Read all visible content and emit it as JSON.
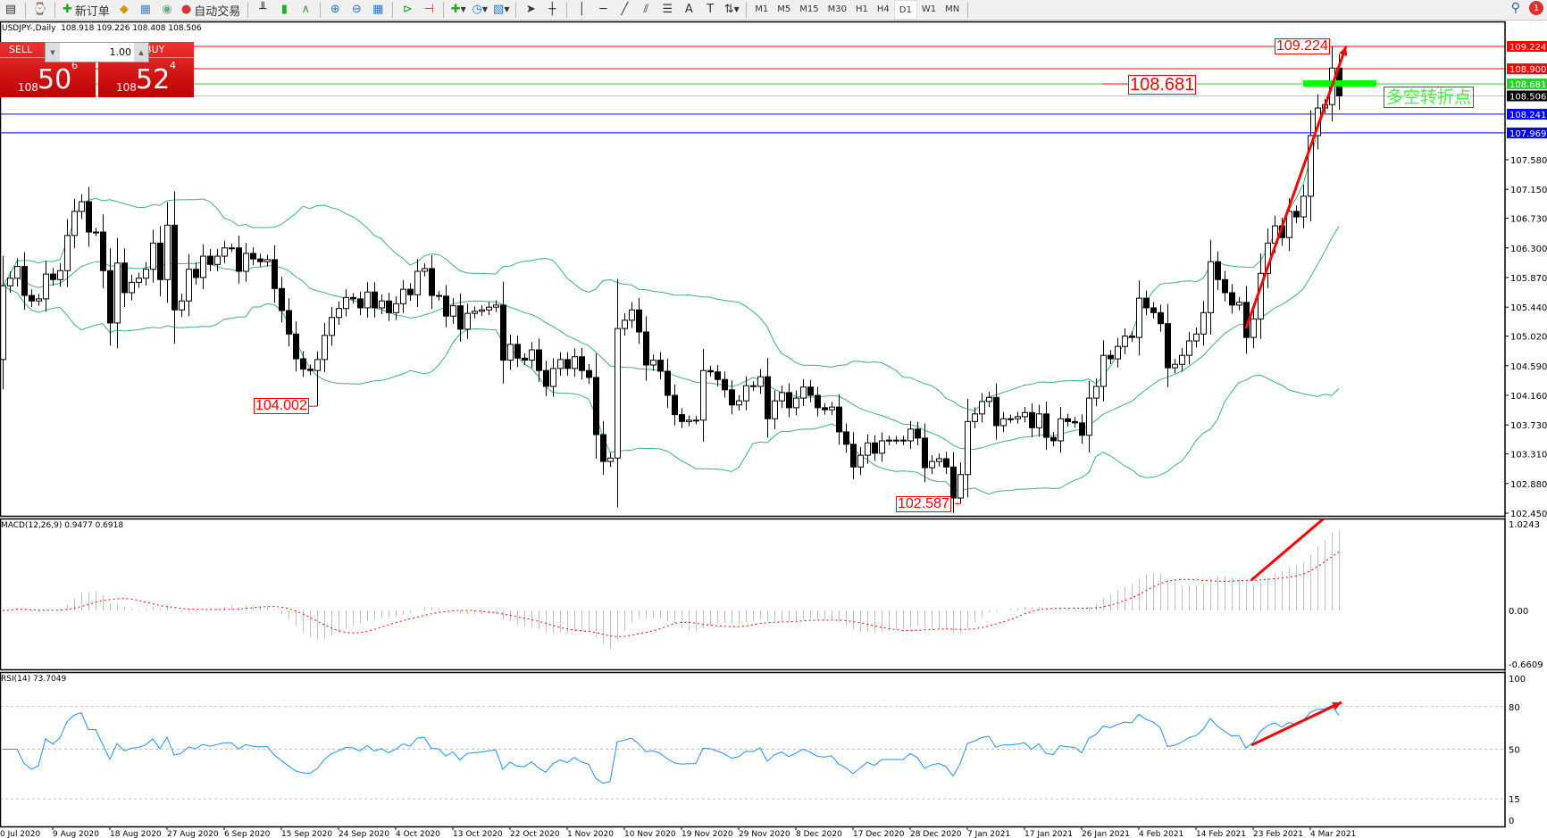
{
  "toolbar": {
    "new_order": "新订单",
    "auto_trading": "自动交易",
    "timeframes": [
      "M1",
      "M5",
      "M15",
      "M30",
      "H1",
      "H4",
      "D1",
      "W1",
      "MN"
    ],
    "active_timeframe": "D1",
    "notification_count": "1"
  },
  "chart": {
    "title": "USDJPY-,Daily  108.918 109.226 108.408 108.506"
  },
  "trade_panel": {
    "sell_label": "SELL",
    "buy_label": "BUY",
    "lot": "1.00",
    "sell_price": {
      "big": "108",
      "main": "50",
      "pip": "6"
    },
    "buy_price": {
      "big": "108",
      "main": "52",
      "pip": "4"
    }
  },
  "annotations": {
    "high_label": "109.224",
    "pivot_label": "108.681",
    "low1_label": "104.002",
    "low2_label": "102.587",
    "pivot_text": "多空转折点"
  },
  "indicators": {
    "macd_label": "MACD(12,26,9) 0.9477 0.6918",
    "rsi_label": "RSI(14) 73.7049"
  },
  "chart_data": {
    "type": "candlestick",
    "symbol": "USDJPY-",
    "timeframe": "Daily",
    "ylim": [
      102.45,
      109.3
    ],
    "first_open": 104.68,
    "close": [
      105.75,
      105.86,
      106.03,
      105.61,
      105.53,
      105.56,
      105.92,
      105.84,
      105.97,
      106.48,
      106.83,
      106.97,
      106.53,
      106.53,
      105.97,
      105.21,
      106.08,
      105.65,
      105.8,
      105.86,
      105.99,
      106.37,
      105.84,
      106.63,
      105.4,
      105.53,
      105.99,
      105.87,
      106.18,
      106.06,
      106.18,
      106.3,
      106.3,
      105.96,
      106.22,
      106.14,
      106.1,
      106.13,
      105.71,
      105.39,
      105.05,
      104.69,
      104.54,
      104.52,
      104.68,
      105.03,
      105.29,
      105.42,
      105.58,
      105.56,
      105.43,
      105.66,
      105.43,
      105.53,
      105.36,
      105.49,
      105.7,
      105.62,
      105.96,
      106.0,
      105.61,
      105.6,
      105.31,
      105.46,
      105.12,
      105.35,
      105.38,
      105.4,
      105.44,
      105.47,
      104.67,
      104.9,
      104.7,
      104.67,
      104.82,
      104.52,
      104.29,
      104.55,
      104.68,
      104.55,
      104.72,
      104.52,
      104.42,
      103.59,
      103.2,
      103.25,
      105.13,
      105.25,
      105.4,
      105.08,
      104.6,
      104.67,
      104.51,
      104.16,
      103.88,
      103.78,
      103.8,
      103.8,
      104.52,
      104.5,
      104.39,
      104.24,
      104.02,
      104.08,
      104.3,
      104.29,
      104.43,
      103.82,
      104.08,
      104.2,
      103.98,
      104.12,
      104.28,
      104.16,
      103.98,
      103.95,
      103.99,
      103.63,
      103.45,
      103.12,
      103.29,
      103.47,
      103.32,
      103.5,
      103.51,
      103.51,
      103.5,
      103.67,
      103.54,
      103.11,
      103.2,
      103.24,
      103.12,
      102.67,
      103.01,
      103.78,
      103.89,
      104.07,
      104.13,
      103.72,
      103.82,
      103.82,
      103.85,
      103.91,
      103.69,
      103.89,
      103.55,
      103.5,
      103.82,
      103.78,
      103.76,
      103.58,
      104.12,
      104.29,
      104.74,
      104.69,
      104.87,
      105.02,
      105.0,
      105.57,
      105.43,
      105.36,
      105.2,
      104.56,
      104.61,
      104.74,
      104.95,
      105.05,
      105.36,
      106.1,
      105.84,
      105.65,
      105.47,
      105.51,
      105.0,
      105.27,
      105.93,
      106.37,
      106.62,
      106.45,
      106.83,
      106.75,
      107.05,
      107.93,
      108.33,
      108.38,
      108.91,
      108.506
    ],
    "extremes": [
      {
        "bar": 44,
        "low": 104.002
      },
      {
        "bar": 134,
        "low": 102.587
      },
      {
        "bar": 186,
        "high": 109.224
      }
    ],
    "price_ticks": [
      "107.580",
      "107.150",
      "106.730",
      "106.300",
      "105.870",
      "105.440",
      "105.020",
      "104.590",
      "104.160",
      "103.730",
      "103.310",
      "102.880",
      "102.450"
    ],
    "price_levels": [
      {
        "value": 109.224,
        "label": "109.224",
        "line": "#ff0000",
        "bg": "#ff0000"
      },
      {
        "value": 108.9,
        "label": "108.900",
        "line": "#ff0000",
        "bg": "#ff0000"
      },
      {
        "value": 108.681,
        "label": "108.681",
        "line": "#32cd32",
        "bg": "#32cd32"
      },
      {
        "value": 108.506,
        "label": "108.506",
        "line": "#c0c0c0",
        "bg": "#000000"
      },
      {
        "value": 108.241,
        "label": "108.241",
        "line": "#0000ff",
        "bg": "#0000ff"
      },
      {
        "value": 107.969,
        "label": "107.969",
        "line": "#0000ff",
        "bg": "#0000ff"
      }
    ],
    "bollinger": {
      "period": 20,
      "deviation": 2,
      "color": "#3cb371"
    },
    "macd": {
      "fast": 12,
      "slow": 26,
      "signal": 9,
      "ticks": [
        "1.0243",
        "0.00",
        "-0.6609"
      ],
      "range": [
        -0.6609,
        1.0243
      ],
      "histogram_color": "#c0c0c0",
      "signal_color": "#ff0000"
    },
    "rsi": {
      "period": 14,
      "levels": [
        80,
        50,
        15
      ],
      "ticks": [
        "100",
        "80",
        "50",
        "15",
        "0"
      ],
      "color": "#1e90ff"
    },
    "date_labels": [
      {
        "bar": -1,
        "label": "0 Jul 2020"
      },
      {
        "bar": 7,
        "label": "9 Aug 2020"
      },
      {
        "bar": 15,
        "label": "18 Aug 2020"
      },
      {
        "bar": 23,
        "label": "27 Aug 2020"
      },
      {
        "bar": 31,
        "label": "6 Sep 2020"
      },
      {
        "bar": 39,
        "label": "15 Sep 2020"
      },
      {
        "bar": 47,
        "label": "24 Sep 2020"
      },
      {
        "bar": 55,
        "label": "4 Oct 2020"
      },
      {
        "bar": 63,
        "label": "13 Oct 2020"
      },
      {
        "bar": 71,
        "label": "22 Oct 2020"
      },
      {
        "bar": 79,
        "label": "1 Nov 2020"
      },
      {
        "bar": 87,
        "label": "10 Nov 2020"
      },
      {
        "bar": 95,
        "label": "19 Nov 2020"
      },
      {
        "bar": 103,
        "label": "29 Nov 2020"
      },
      {
        "bar": 111,
        "label": "8 Dec 2020"
      },
      {
        "bar": 119,
        "label": "17 Dec 2020"
      },
      {
        "bar": 127,
        "label": "28 Dec 2020"
      },
      {
        "bar": 135,
        "label": "7 Jan 2021"
      },
      {
        "bar": 143,
        "label": "17 Jan 2021"
      },
      {
        "bar": 151,
        "label": "26 Jan 2021"
      },
      {
        "bar": 159,
        "label": "4 Feb 2021"
      },
      {
        "bar": 167,
        "label": "14 Feb 2021"
      },
      {
        "bar": 175,
        "label": "23 Feb 2021"
      },
      {
        "bar": 183,
        "label": "4 Mar 2021"
      }
    ],
    "colors": {
      "arrow": "#ff0000",
      "pivot_bar": "#00ff00",
      "candle_up": "#ffffff",
      "candle_down": "#000000"
    }
  }
}
